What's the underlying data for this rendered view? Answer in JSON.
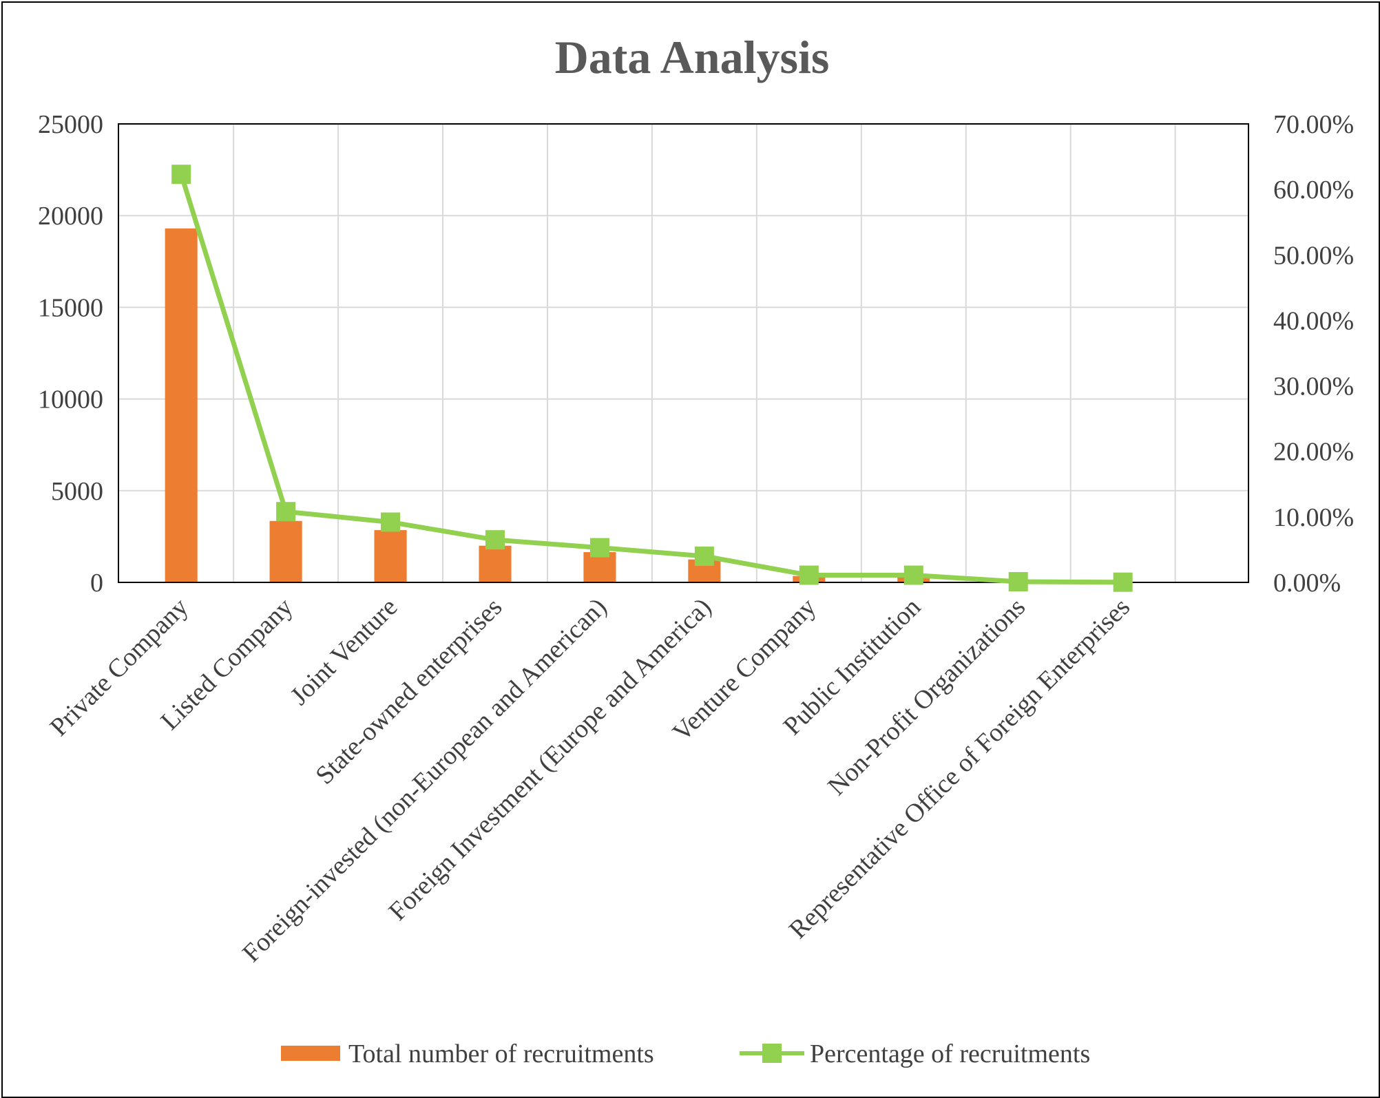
{
  "chart_data": {
    "type": "bar",
    "title": "Data Analysis",
    "categories": [
      "Private Company",
      "Listed Company",
      "Joint Venture",
      "State-owned enterprises",
      "Foreign-invested (non-European and American)",
      "Foreign Investment (Europe and America)",
      "Venture Company",
      "Public Institution",
      "Non-Profit Organizations",
      "Representative Office of Foreign Enterprises"
    ],
    "series": [
      {
        "name": "Total number of recruitments",
        "type": "bar",
        "axis": "left",
        "color": "#ED7D31",
        "values": [
          19300,
          3350,
          2850,
          2000,
          1650,
          1250,
          350,
          330,
          40,
          10
        ]
      },
      {
        "name": "Percentage of recruitments",
        "type": "line",
        "axis": "right",
        "color": "#92D050",
        "values": [
          0.623,
          0.108,
          0.092,
          0.065,
          0.053,
          0.04,
          0.011,
          0.011,
          0.001,
          0.0003
        ]
      }
    ],
    "y_left": {
      "min": 0,
      "max": 25000,
      "ticks": [
        0,
        5000,
        10000,
        15000,
        20000,
        25000
      ],
      "tick_labels": [
        "0",
        "5000",
        "10000",
        "15000",
        "20000",
        "25000"
      ]
    },
    "y_right": {
      "min": 0,
      "max": 0.7,
      "ticks": [
        0,
        0.1,
        0.2,
        0.3,
        0.4,
        0.5,
        0.6,
        0.7
      ],
      "tick_labels": [
        "0.00%",
        "10.00%",
        "20.00%",
        "30.00%",
        "40.00%",
        "50.00%",
        "60.00%",
        "70.00%"
      ]
    },
    "grid": true,
    "legend": "bottom"
  }
}
